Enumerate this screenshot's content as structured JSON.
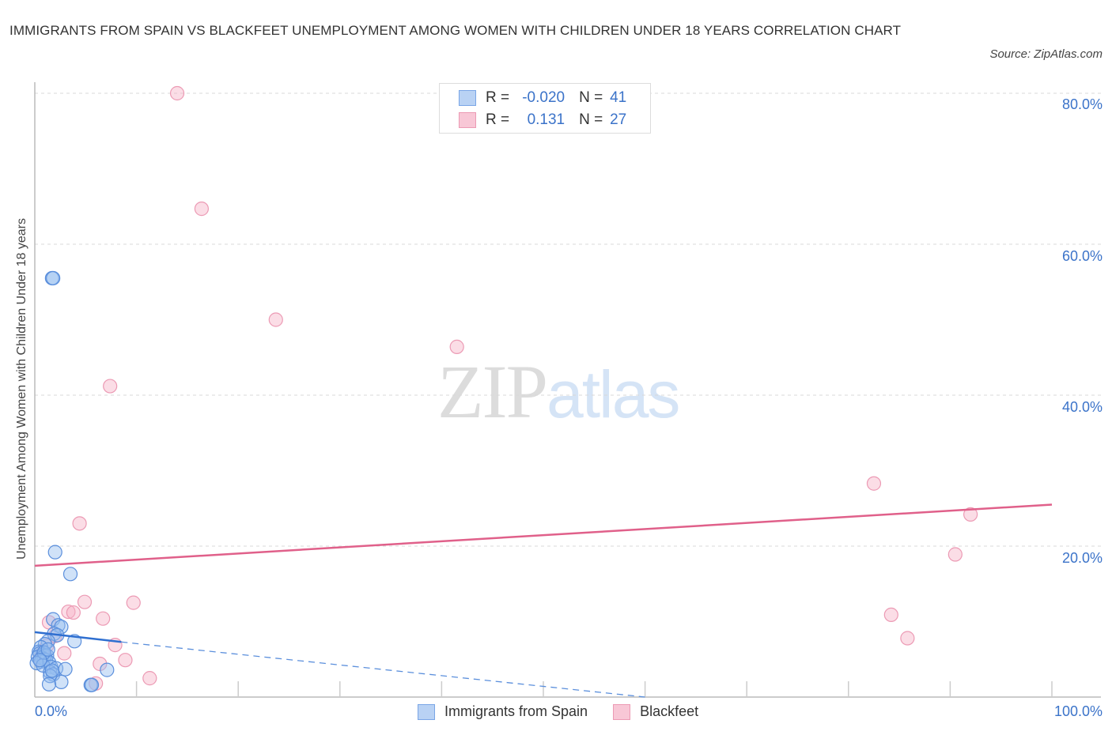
{
  "header": {
    "title": "IMMIGRANTS FROM SPAIN VS BLACKFEET UNEMPLOYMENT AMONG WOMEN WITH CHILDREN UNDER 18 YEARS CORRELATION CHART",
    "source": "Source: ZipAtlas.com"
  },
  "watermark": {
    "zip": "ZIP",
    "atlas": "atlas"
  },
  "legend_top": {
    "rows": [
      {
        "r_label": "R =",
        "r_value": "-0.020",
        "n_label": "N =",
        "n_value": "41"
      },
      {
        "r_label": "R =",
        "r_value": "0.131",
        "n_label": "N =",
        "n_value": "27"
      }
    ]
  },
  "axes": {
    "ylabel": "Unemployment Among Women with Children Under 18 years",
    "yticks": [
      "80.0%",
      "60.0%",
      "40.0%",
      "20.0%"
    ],
    "xticks": {
      "left": "0.0%",
      "right": "100.0%"
    }
  },
  "legend_bottom": {
    "items": [
      "Immigrants from Spain",
      "Blackfeet"
    ]
  },
  "colors": {
    "blue": "#3b73c9",
    "blue_fill": "#b9d2f4",
    "pink": "#e0608a",
    "pink_fill": "#f8c7d6",
    "grid": "#d8d8d8"
  },
  "chart_data": {
    "type": "scatter",
    "title": "Immigrants from Spain vs Blackfeet Unemployment Among Women with Children Under 18 years Correlation Chart",
    "xlabel": "",
    "ylabel": "Unemployment Among Women with Children Under 18 years",
    "xlim": [
      0,
      100
    ],
    "ylim": [
      0,
      80
    ],
    "x_tick_labels": [
      "0.0%",
      "100.0%"
    ],
    "y_tick_labels": [
      "20.0%",
      "40.0%",
      "60.0%",
      "80.0%"
    ],
    "grid": true,
    "legend_position": "bottom",
    "series": [
      {
        "name": "Immigrants from Spain",
        "R": -0.02,
        "N": 41,
        "points": [
          [
            1.7,
            55.5
          ],
          [
            1.8,
            55.5
          ],
          [
            2.0,
            19.2
          ],
          [
            3.5,
            16.3
          ],
          [
            1.8,
            10.3
          ],
          [
            2.3,
            9.5
          ],
          [
            2.6,
            9.3
          ],
          [
            1.9,
            8.4
          ],
          [
            2.2,
            8.2
          ],
          [
            3.9,
            7.4
          ],
          [
            1.3,
            7.4
          ],
          [
            1.0,
            7.0
          ],
          [
            0.6,
            6.6
          ],
          [
            0.4,
            6.0
          ],
          [
            0.5,
            5.8
          ],
          [
            0.8,
            5.6
          ],
          [
            1.0,
            5.5
          ],
          [
            1.2,
            5.5
          ],
          [
            0.3,
            5.3
          ],
          [
            0.7,
            5.2
          ],
          [
            0.9,
            5.0
          ],
          [
            1.1,
            4.9
          ],
          [
            0.6,
            4.7
          ],
          [
            1.4,
            4.6
          ],
          [
            0.2,
            4.5
          ],
          [
            0.8,
            4.2
          ],
          [
            1.6,
            4.0
          ],
          [
            2.1,
            3.8
          ],
          [
            3.0,
            3.7
          ],
          [
            7.1,
            3.6
          ],
          [
            1.5,
            3.3
          ],
          [
            1.8,
            3.0
          ],
          [
            1.5,
            2.8
          ],
          [
            2.6,
            2.0
          ],
          [
            1.4,
            1.7
          ],
          [
            5.5,
            1.6
          ],
          [
            5.6,
            1.6
          ],
          [
            0.9,
            5.9
          ],
          [
            1.3,
            6.3
          ],
          [
            0.5,
            4.9
          ],
          [
            1.7,
            3.5
          ]
        ],
        "trend": {
          "x": [
            0,
            8.5
          ],
          "y": [
            8.6,
            7.3
          ],
          "extended_dashed_to": [
            60,
            0
          ]
        }
      },
      {
        "name": "Blackfeet",
        "R": 0.131,
        "N": 27,
        "points": [
          [
            14.0,
            80.0
          ],
          [
            16.4,
            64.7
          ],
          [
            23.7,
            50.0
          ],
          [
            41.5,
            46.4
          ],
          [
            7.4,
            41.2
          ],
          [
            4.4,
            23.0
          ],
          [
            82.5,
            28.3
          ],
          [
            92.0,
            24.2
          ],
          [
            90.5,
            18.9
          ],
          [
            9.7,
            12.5
          ],
          [
            4.9,
            12.6
          ],
          [
            3.3,
            11.3
          ],
          [
            3.8,
            11.2
          ],
          [
            6.7,
            10.4
          ],
          [
            1.4,
            9.9
          ],
          [
            2.0,
            8.1
          ],
          [
            7.9,
            6.9
          ],
          [
            2.9,
            5.8
          ],
          [
            6.4,
            4.4
          ],
          [
            8.9,
            4.9
          ],
          [
            84.2,
            10.9
          ],
          [
            85.8,
            7.8
          ],
          [
            11.3,
            2.5
          ],
          [
            6.0,
            1.8
          ],
          [
            0.8,
            6.0
          ],
          [
            1.2,
            6.8
          ],
          [
            0.5,
            5.1
          ]
        ],
        "trend": {
          "x": [
            0,
            100
          ],
          "y": [
            17.4,
            25.5
          ]
        }
      }
    ]
  }
}
